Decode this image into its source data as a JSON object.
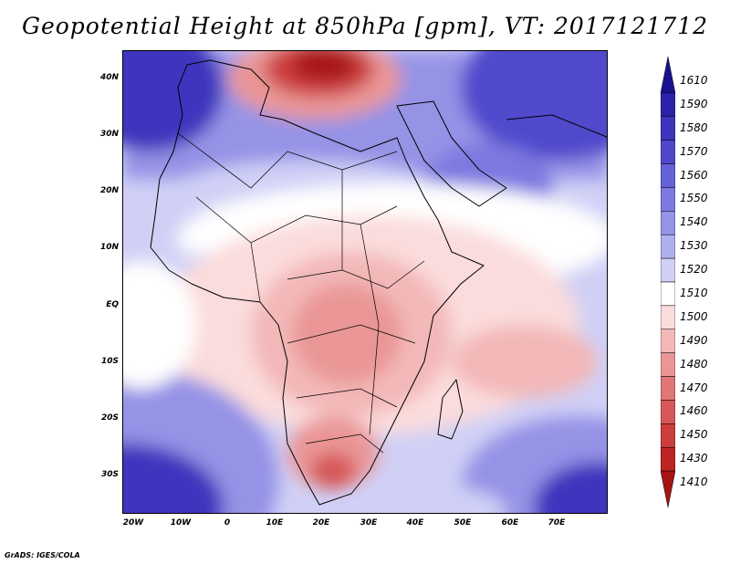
{
  "title": "Geopotential Height at 850hPa [gpm], VT: 2017121712",
  "credit": "GrADS: IGES/COLA",
  "lat_ticks": [
    "40N",
    "30N",
    "20N",
    "10N",
    "EQ",
    "10S",
    "20S",
    "30S"
  ],
  "lon_ticks": [
    "20W",
    "10W",
    "0",
    "10E",
    "20E",
    "30E",
    "40E",
    "50E",
    "60E",
    "70E"
  ],
  "colorbar": {
    "labels": [
      "1610",
      "1590",
      "1580",
      "1570",
      "1560",
      "1550",
      "1540",
      "1530",
      "1520",
      "1510",
      "1500",
      "1490",
      "1480",
      "1470",
      "1460",
      "1450",
      "1430",
      "1410"
    ],
    "colors": [
      "#1a128f",
      "#2a22a8",
      "#3d35bd",
      "#4f48cc",
      "#6561d8",
      "#7c79e0",
      "#9593e6",
      "#b0afee",
      "#d0d0f6",
      "#ffffff",
      "#fbdcdc",
      "#f3b8b8",
      "#ea9696",
      "#e07676",
      "#d65858",
      "#cc3d3d",
      "#bd2424",
      "#a81414"
    ]
  }
}
